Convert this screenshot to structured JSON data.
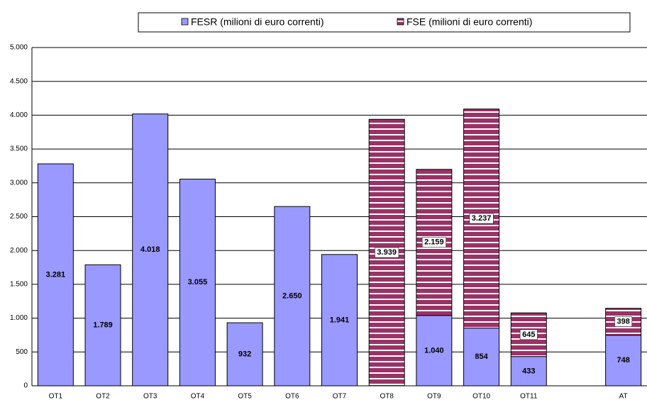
{
  "chart_data": {
    "type": "stacked_bar",
    "categories": [
      "OT1",
      "OT2",
      "OT3",
      "OT4",
      "OT5",
      "OT6",
      "OT7",
      "OT8",
      "OT9",
      "OT10",
      "OT11",
      null,
      "AT"
    ],
    "series": [
      {
        "name": "FESR (milioni di euro correnti)",
        "color": "#9999ff",
        "values": [
          3281,
          1789,
          4018,
          3055,
          932,
          2650,
          1941,
          null,
          1040,
          854,
          433,
          null,
          748
        ],
        "value_labels": [
          "3.281",
          "1.789",
          "4.018",
          "3.055",
          "932",
          "2.650",
          "1.941",
          null,
          "1.040",
          "854",
          "433",
          null,
          "748"
        ]
      },
      {
        "name": "FSE (milioni di euro correnti)",
        "color": "#993366",
        "values": [
          null,
          null,
          null,
          null,
          null,
          null,
          null,
          3939,
          2159,
          3237,
          645,
          null,
          398
        ],
        "value_labels": [
          null,
          null,
          null,
          null,
          null,
          null,
          null,
          "3.939",
          "2.159",
          "3.237",
          "645",
          null,
          "398"
        ]
      }
    ],
    "ylim": [
      0,
      5000
    ],
    "yticks": [
      0,
      {
        "value": 500,
        "label": "500"
      },
      {
        "value": 1000,
        "label": "1.000"
      },
      {
        "value": 1500,
        "label": "1.500"
      },
      {
        "value": 2000,
        "label": "2.000"
      },
      {
        "value": 2500,
        "label": "2.500"
      },
      {
        "value": 3000,
        "label": "3.000"
      },
      {
        "value": 3500,
        "label": "3.500"
      },
      {
        "value": 4000,
        "label": "4.000"
      },
      {
        "value": 4500,
        "label": "4.500"
      },
      {
        "value": 5000,
        "label": "5.000"
      }
    ],
    "grid": true,
    "legend": "top"
  }
}
